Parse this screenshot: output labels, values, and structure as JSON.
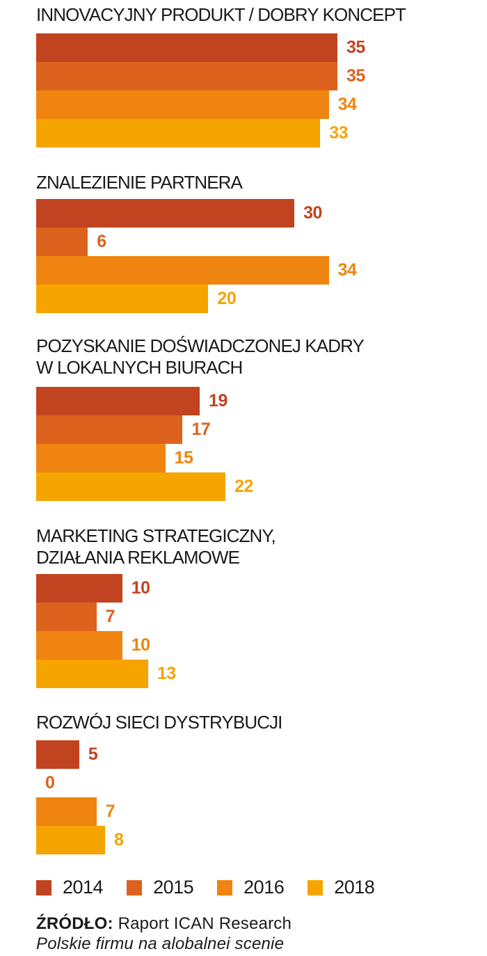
{
  "chart_data": {
    "type": "bar",
    "orientation": "horizontal",
    "series": [
      {
        "name": "2014",
        "color": "#c2431f"
      },
      {
        "name": "2015",
        "color": "#dc621d"
      },
      {
        "name": "2016",
        "color": "#ef8410"
      },
      {
        "name": "2018",
        "color": "#f5a400"
      }
    ],
    "categories": [
      {
        "title_lines": [
          "INNOVACYJNY PRODUKT / DOBRY KONCEPT"
        ],
        "values": [
          35,
          35,
          34,
          33
        ]
      },
      {
        "title_lines": [
          "ZNALEZIENIE PARTNERA"
        ],
        "values": [
          30,
          6,
          34,
          20
        ]
      },
      {
        "title_lines": [
          "POZYSKANIE DOŚWIADCZONEJ KADRY",
          "W LOKALNYCH BIURACH"
        ],
        "values": [
          19,
          17,
          15,
          22
        ]
      },
      {
        "title_lines": [
          "MARKETING STRATEGICZNY,",
          "DZIAŁANIA REKLAMOWE"
        ],
        "values": [
          10,
          7,
          10,
          13
        ]
      },
      {
        "title_lines": [
          "ROZWÓJ SIECI DYSTRYBUCJI"
        ],
        "values": [
          5,
          0,
          7,
          8
        ]
      }
    ],
    "xlim": [
      0,
      35
    ],
    "grid": false,
    "legend_position": "bottom"
  },
  "source": {
    "label": "ŹRÓDŁO:",
    "text": "Raport ICAN Research",
    "subtitle": "Polskie firmu na alobalnei scenie"
  }
}
